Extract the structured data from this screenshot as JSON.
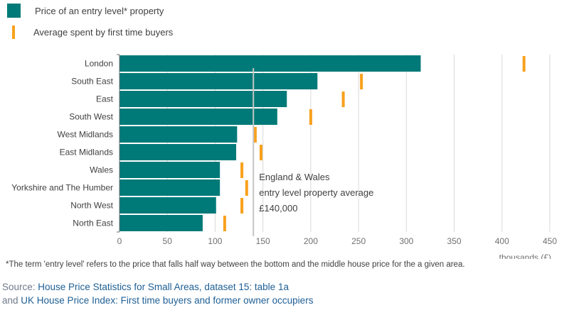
{
  "legend": {
    "bar_label": "Price of an entry level* property",
    "tick_label": "Average spent by first time buyers"
  },
  "chart_data": {
    "type": "bar",
    "orientation": "horizontal",
    "categories": [
      "London",
      "South East",
      "East",
      "South West",
      "West Midlands",
      "East Midlands",
      "Wales",
      "Yorkshire and The Humber",
      "North West",
      "North East"
    ],
    "series": [
      {
        "name": "Price of an entry level* property",
        "values": [
          315,
          207,
          175,
          165,
          123,
          122,
          105,
          105,
          101,
          87
        ]
      },
      {
        "name": "Average spent by first time buyers",
        "values": [
          423,
          253,
          234,
          200,
          142,
          148,
          128,
          133,
          128,
          110
        ]
      }
    ],
    "xlim": [
      0,
      450
    ],
    "xticks": [
      0,
      50,
      100,
      150,
      200,
      250,
      300,
      350,
      400,
      450
    ],
    "xlabel": "thousands (£)",
    "grid": true,
    "legend_position": "top-left",
    "reference_line": {
      "value": 140,
      "label_lines": [
        "England & Wales",
        "entry level property average",
        "£140,000"
      ]
    },
    "colors": {
      "bars": "#007a78",
      "ticks": "#f8a11d",
      "reference": "#c6c6c6",
      "grid": "#d9d9d9"
    }
  },
  "footnote": "*The term 'entry level' refers to the price that falls half way between the bottom and the middle house price for the a given area.",
  "source": {
    "prefix": "Source: ",
    "link1": "House Price Statistics for Small Areas, dataset 15: table 1a",
    "and_text": "and ",
    "link2": "UK House Price Index: First time buyers and former owner occupiers"
  }
}
